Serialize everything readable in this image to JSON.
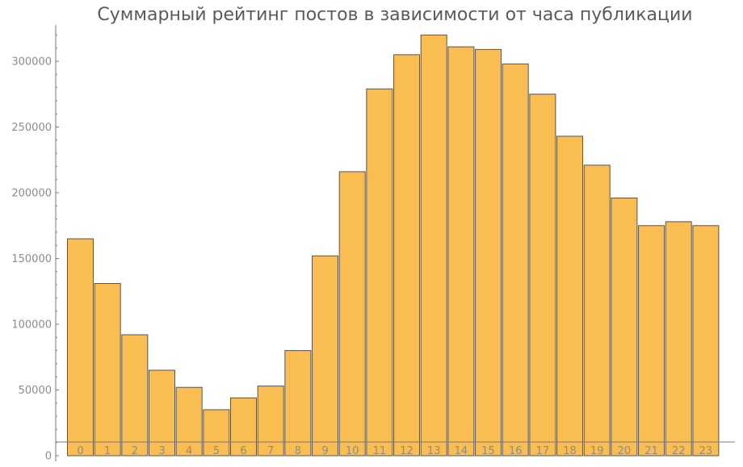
{
  "chart_data": {
    "type": "bar",
    "title": "Суммарный рейтинг постов в зависимости от часа публикации",
    "xlabel": "",
    "ylabel": "",
    "categories": [
      "0",
      "1",
      "2",
      "3",
      "4",
      "5",
      "6",
      "7",
      "8",
      "9",
      "10",
      "11",
      "12",
      "13",
      "14",
      "15",
      "16",
      "17",
      "18",
      "19",
      "20",
      "21",
      "22",
      "23"
    ],
    "values": [
      165000,
      131000,
      92000,
      65000,
      52000,
      35000,
      44000,
      53000,
      80000,
      152000,
      216000,
      279000,
      305000,
      320000,
      311000,
      309000,
      298000,
      275000,
      243000,
      221000,
      196000,
      175000,
      178000,
      175000
    ],
    "ylim": [
      0,
      325000
    ],
    "yticks": [
      0,
      50000,
      100000,
      150000,
      200000,
      250000,
      300000
    ],
    "ytick_labels": [
      "0",
      "50000",
      "100000",
      "150000",
      "200000",
      "250000",
      "300000"
    ],
    "bar_color": "#f9bd52",
    "grid": false,
    "legend": "none"
  }
}
